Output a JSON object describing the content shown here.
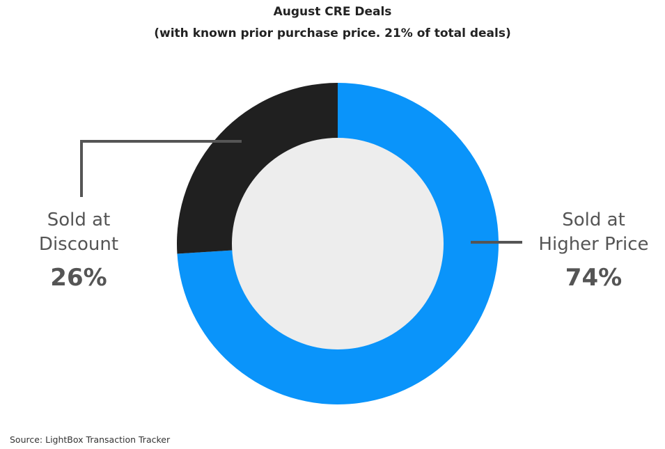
{
  "header": {
    "title": "August CRE Deals",
    "subtitle": "(with known prior purchase price. 21% of total deals)"
  },
  "labels": {
    "left": {
      "name_line1": "Sold at",
      "name_line2": "Discount",
      "percent": "26%"
    },
    "right": {
      "name_line1": "Sold at",
      "name_line2": "Higher Price",
      "percent": "74%"
    }
  },
  "footer": {
    "source": "Source: LightBox Transaction Tracker"
  },
  "colors": {
    "higher_price": "#0A94FA",
    "discount": "#202020",
    "center": "#EDEDED",
    "leader": "#555555"
  },
  "chart_data": {
    "type": "pie",
    "variant": "donut",
    "title": "August CRE Deals",
    "subtitle": "(with known prior purchase price. 21% of total deals)",
    "categories": [
      "Sold at Higher Price",
      "Sold at Discount"
    ],
    "values": [
      74,
      26
    ],
    "unit": "%",
    "colors": [
      "#0A94FA",
      "#202020"
    ],
    "start_angle": "12 o'clock, clockwise",
    "legend": "none (direct labels with leader lines)",
    "source": "Source: LightBox Transaction Tracker"
  }
}
